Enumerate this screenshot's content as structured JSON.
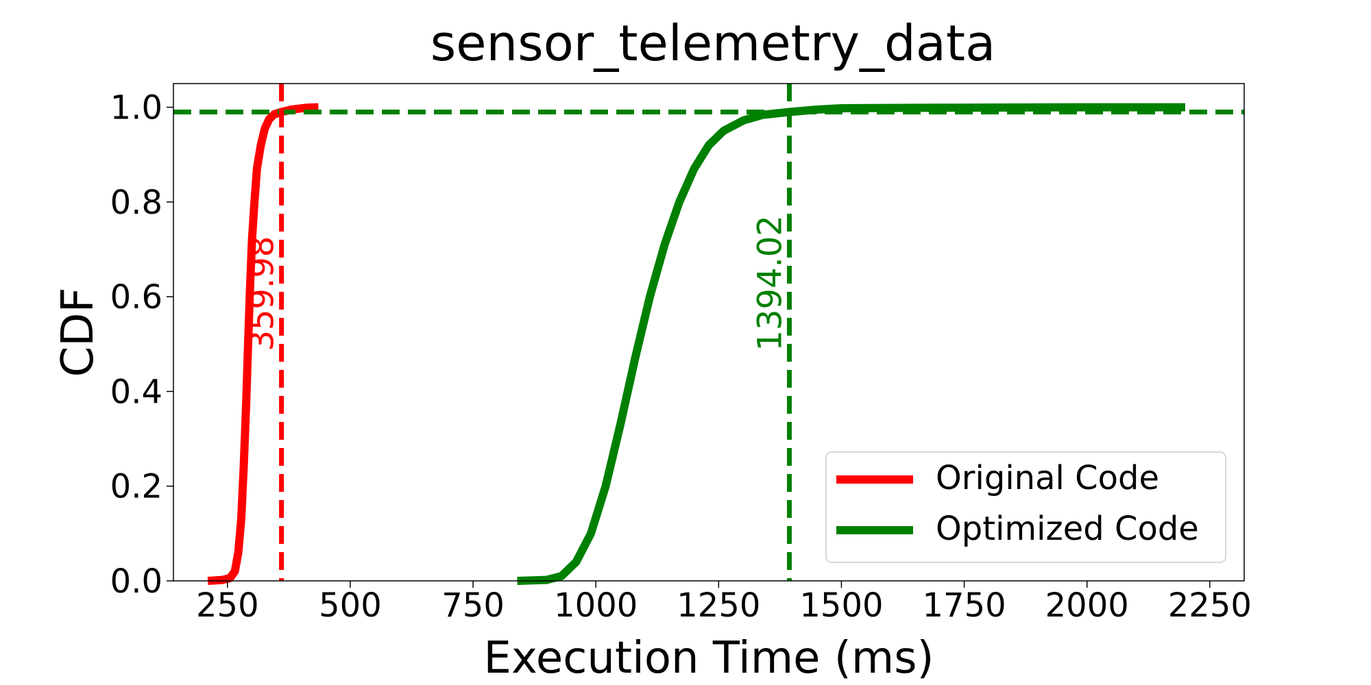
{
  "chart_data": {
    "type": "line",
    "title": "sensor_telemetry_data",
    "xlabel": "Execution Time (ms)",
    "ylabel": "CDF",
    "xlim": [
      140,
      2320
    ],
    "ylim": [
      0.0,
      1.05
    ],
    "xticks": [
      250,
      500,
      750,
      1000,
      1250,
      1500,
      1750,
      2000,
      2250
    ],
    "yticks": [
      0.0,
      0.2,
      0.4,
      0.6,
      0.8,
      1.0
    ],
    "xtick_labels": [
      "250",
      "500",
      "750",
      "1000",
      "1250",
      "1500",
      "1750",
      "2000",
      "2250"
    ],
    "ytick_labels": [
      "0.0",
      "0.2",
      "0.4",
      "0.6",
      "0.8",
      "1.0"
    ],
    "grid": false,
    "legend_position": "lower-right",
    "series": [
      {
        "name": "Original Code",
        "color": "#ff0000",
        "x": [
          210,
          240,
          255,
          265,
          272,
          278,
          283,
          288,
          292,
          296,
          300,
          305,
          310,
          318,
          326,
          335,
          345,
          360,
          380,
          410,
          435
        ],
        "y": [
          0.0,
          0.002,
          0.006,
          0.02,
          0.06,
          0.13,
          0.24,
          0.37,
          0.5,
          0.62,
          0.72,
          0.8,
          0.87,
          0.92,
          0.955,
          0.975,
          0.985,
          0.99,
          0.995,
          0.999,
          1.0
        ]
      },
      {
        "name": "Optimized Code",
        "color": "#008000",
        "x": [
          840,
          900,
          930,
          960,
          990,
          1020,
          1050,
          1080,
          1110,
          1140,
          1170,
          1200,
          1230,
          1260,
          1300,
          1340,
          1394,
          1450,
          1500,
          1700,
          2000,
          2200
        ],
        "y": [
          0.0,
          0.002,
          0.01,
          0.04,
          0.1,
          0.2,
          0.33,
          0.47,
          0.6,
          0.71,
          0.8,
          0.87,
          0.92,
          0.95,
          0.972,
          0.984,
          0.99,
          0.995,
          0.998,
          0.999,
          1.0,
          1.0
        ]
      }
    ],
    "reference_lines": {
      "horizontal": {
        "y": 0.99,
        "color": "#008000"
      },
      "vertical": [
        {
          "x": 359.98,
          "label": "359.98",
          "color": "#ff0000"
        },
        {
          "x": 1394.02,
          "label": "1394.02",
          "color": "#008000"
        }
      ]
    }
  }
}
